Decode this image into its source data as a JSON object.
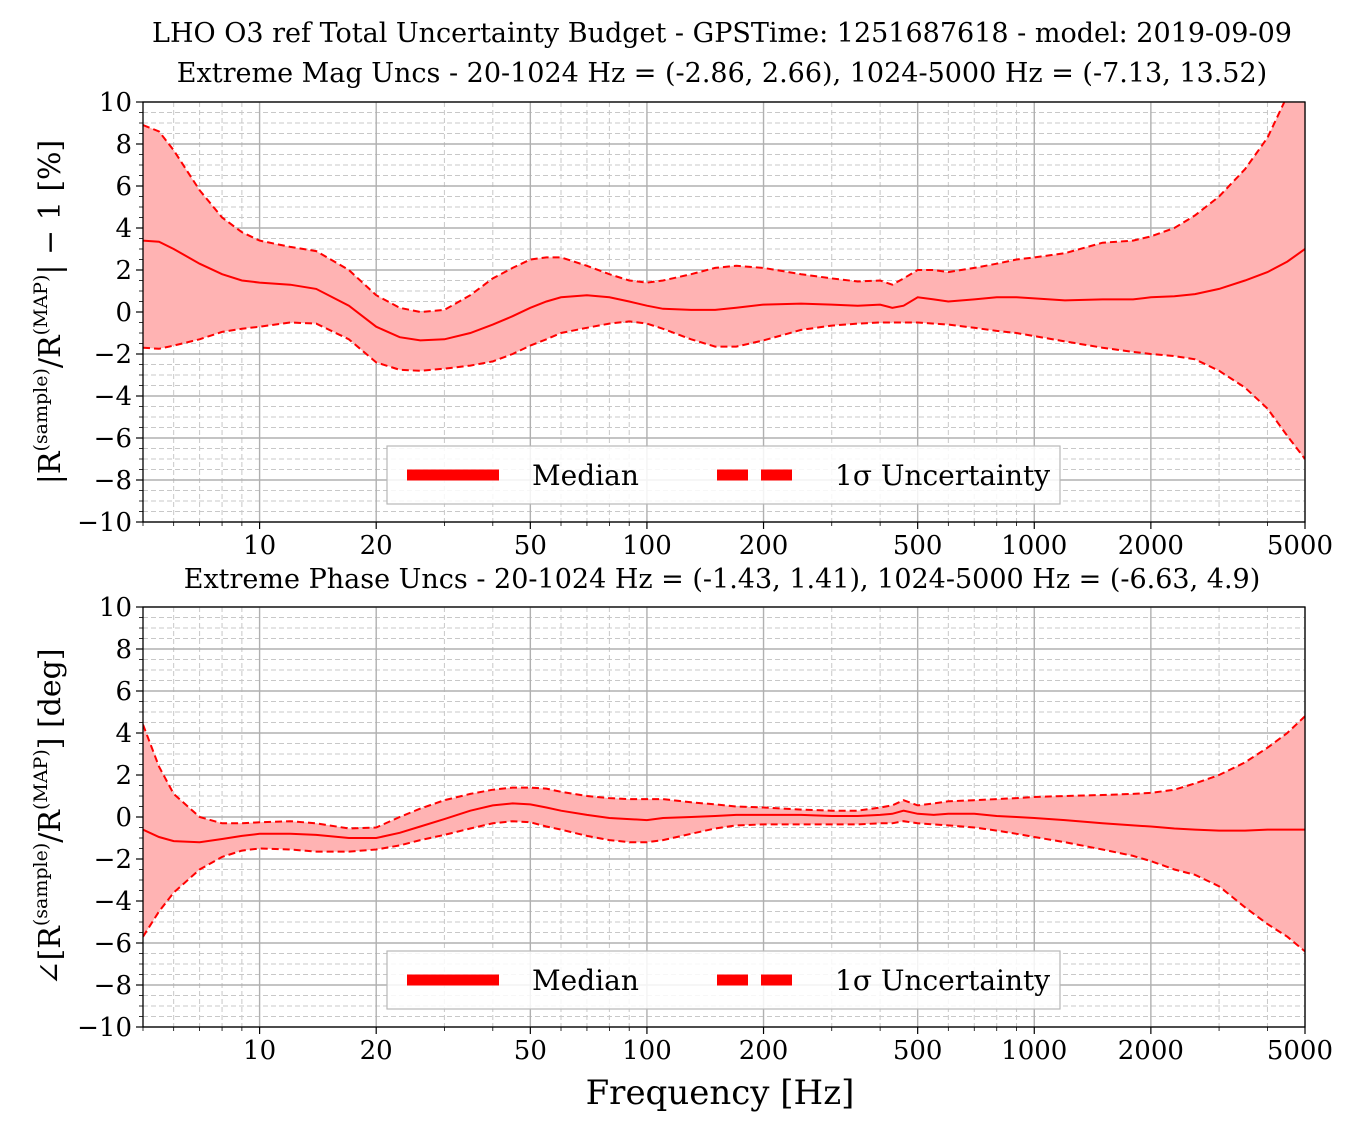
{
  "figure": {
    "suptitle_line1": "LHO O3 ref Total Uncertainty Budget - GPSTime: 1251687618 - model: 2019-09-09",
    "colors": {
      "median": "#ff0000",
      "band": "#ffb3b3",
      "grid": "#b0b0b0",
      "minor_grid": "#c8c8c8"
    }
  },
  "chart_data": [
    {
      "type": "area",
      "title": "Extreme Mag Uncs - 20-1024 Hz = (-2.86, 2.66), 1024-5000 Hz = (-7.13, 13.52)",
      "xlabel": "",
      "ylabel": "|R(sample)/R(MAP)| − 1 [%]",
      "ylabel_parts": {
        "pre": "|R",
        "sup1": "(sample)",
        "mid": "/R",
        "sup2": "(MAP)",
        "post": "| − 1 [%]"
      },
      "xscale": "log",
      "xlim": [
        5,
        5000
      ],
      "ylim": [
        -10,
        10
      ],
      "xticks": [
        10,
        20,
        50,
        100,
        200,
        500,
        1000,
        2000,
        5000
      ],
      "xtick_labels": [
        "10",
        "20",
        "50",
        "100",
        "200",
        "500",
        "1000",
        "2000",
        "5000"
      ],
      "yticks": [
        -10,
        -8,
        -6,
        -4,
        -2,
        0,
        2,
        4,
        6,
        8,
        10
      ],
      "ytick_labels": [
        "−10",
        "−8",
        "−6",
        "−4",
        "−2",
        "0",
        "2",
        "4",
        "6",
        "8",
        "10"
      ],
      "grid": true,
      "legend": {
        "placement": "bottom-center",
        "entries": [
          "Median",
          "1σ Uncertainty"
        ]
      },
      "x": [
        5,
        5.5,
        6,
        7,
        8,
        9,
        10,
        12,
        14,
        17,
        20,
        23,
        26,
        30,
        35,
        40,
        45,
        50,
        55,
        60,
        70,
        80,
        90,
        100,
        110,
        130,
        150,
        170,
        200,
        250,
        300,
        350,
        400,
        430,
        460,
        500,
        550,
        600,
        700,
        800,
        900,
        1000,
        1200,
        1500,
        1800,
        2000,
        2300,
        2600,
        3000,
        3500,
        4000,
        4500,
        5000
      ],
      "median": [
        3.4,
        3.35,
        3.0,
        2.3,
        1.8,
        1.5,
        1.4,
        1.3,
        1.1,
        0.3,
        -0.7,
        -1.2,
        -1.35,
        -1.3,
        -1.0,
        -0.6,
        -0.2,
        0.2,
        0.5,
        0.7,
        0.8,
        0.7,
        0.5,
        0.3,
        0.15,
        0.1,
        0.1,
        0.2,
        0.35,
        0.4,
        0.35,
        0.3,
        0.35,
        0.2,
        0.3,
        0.7,
        0.6,
        0.5,
        0.6,
        0.7,
        0.7,
        0.65,
        0.55,
        0.6,
        0.6,
        0.7,
        0.75,
        0.85,
        1.1,
        1.5,
        1.9,
        2.4,
        3.0
      ],
      "upper": [
        8.9,
        8.6,
        7.7,
        5.8,
        4.5,
        3.8,
        3.4,
        3.1,
        2.9,
        2.0,
        0.8,
        0.2,
        0.0,
        0.1,
        0.8,
        1.6,
        2.1,
        2.5,
        2.6,
        2.6,
        2.2,
        1.8,
        1.5,
        1.4,
        1.5,
        1.8,
        2.1,
        2.2,
        2.1,
        1.8,
        1.6,
        1.45,
        1.5,
        1.3,
        1.6,
        2.0,
        2.0,
        1.9,
        2.1,
        2.3,
        2.5,
        2.6,
        2.8,
        3.3,
        3.4,
        3.6,
        4.0,
        4.6,
        5.5,
        6.8,
        8.3,
        10.3,
        12.5
      ],
      "lower": [
        -1.7,
        -1.75,
        -1.6,
        -1.3,
        -0.95,
        -0.8,
        -0.7,
        -0.5,
        -0.55,
        -1.3,
        -2.4,
        -2.75,
        -2.8,
        -2.7,
        -2.55,
        -2.35,
        -2.0,
        -1.6,
        -1.3,
        -1.0,
        -0.75,
        -0.55,
        -0.45,
        -0.55,
        -0.8,
        -1.3,
        -1.65,
        -1.65,
        -1.35,
        -0.85,
        -0.65,
        -0.55,
        -0.5,
        -0.5,
        -0.5,
        -0.5,
        -0.55,
        -0.6,
        -0.75,
        -0.9,
        -1.0,
        -1.15,
        -1.4,
        -1.7,
        -1.9,
        -2.0,
        -2.1,
        -2.25,
        -2.8,
        -3.6,
        -4.6,
        -5.9,
        -7.0
      ]
    },
    {
      "type": "area",
      "title": "Extreme Phase Uncs - 20-1024 Hz = (-1.43, 1.41), 1024-5000 Hz = (-6.63, 4.9)",
      "xlabel": "Frequency [Hz]",
      "ylabel": "∠[R(sample)/R(MAP)] [deg]",
      "ylabel_parts": {
        "pre": "∠[R",
        "sup1": "(sample)",
        "mid": "/R",
        "sup2": "(MAP)",
        "post": "] [deg]"
      },
      "xscale": "log",
      "xlim": [
        5,
        5000
      ],
      "ylim": [
        -10,
        10
      ],
      "xticks": [
        10,
        20,
        50,
        100,
        200,
        500,
        1000,
        2000,
        5000
      ],
      "xtick_labels": [
        "10",
        "20",
        "50",
        "100",
        "200",
        "500",
        "1000",
        "2000",
        "5000"
      ],
      "yticks": [
        -10,
        -8,
        -6,
        -4,
        -2,
        0,
        2,
        4,
        6,
        8,
        10
      ],
      "ytick_labels": [
        "−10",
        "−8",
        "−6",
        "−4",
        "−2",
        "0",
        "2",
        "4",
        "6",
        "8",
        "10"
      ],
      "grid": true,
      "legend": {
        "placement": "bottom-center",
        "entries": [
          "Median",
          "1σ Uncertainty"
        ]
      },
      "x": [
        5,
        5.5,
        6,
        7,
        8,
        9,
        10,
        12,
        14,
        17,
        20,
        23,
        26,
        30,
        35,
        40,
        45,
        50,
        55,
        60,
        70,
        80,
        90,
        100,
        110,
        130,
        150,
        170,
        200,
        250,
        300,
        350,
        400,
        430,
        460,
        500,
        550,
        600,
        700,
        800,
        900,
        1000,
        1200,
        1500,
        1800,
        2000,
        2300,
        2600,
        3000,
        3500,
        4000,
        4500,
        5000
      ],
      "median": [
        -0.6,
        -0.95,
        -1.15,
        -1.2,
        -1.05,
        -0.9,
        -0.8,
        -0.8,
        -0.85,
        -1.0,
        -1.0,
        -0.75,
        -0.45,
        -0.1,
        0.3,
        0.55,
        0.65,
        0.6,
        0.45,
        0.3,
        0.1,
        -0.05,
        -0.1,
        -0.15,
        -0.05,
        0.0,
        0.05,
        0.1,
        0.1,
        0.1,
        0.05,
        0.05,
        0.1,
        0.15,
        0.3,
        0.15,
        0.1,
        0.15,
        0.15,
        0.05,
        0.0,
        -0.05,
        -0.15,
        -0.3,
        -0.4,
        -0.45,
        -0.55,
        -0.6,
        -0.65,
        -0.65,
        -0.6,
        -0.6,
        -0.6
      ],
      "upper": [
        4.4,
        2.4,
        1.1,
        0.0,
        -0.3,
        -0.3,
        -0.25,
        -0.2,
        -0.3,
        -0.55,
        -0.5,
        0.0,
        0.4,
        0.8,
        1.1,
        1.3,
        1.4,
        1.4,
        1.35,
        1.2,
        1.0,
        0.9,
        0.85,
        0.85,
        0.85,
        0.7,
        0.6,
        0.5,
        0.45,
        0.35,
        0.3,
        0.3,
        0.45,
        0.55,
        0.8,
        0.55,
        0.65,
        0.75,
        0.8,
        0.85,
        0.9,
        0.95,
        1.0,
        1.05,
        1.1,
        1.15,
        1.3,
        1.6,
        2.0,
        2.6,
        3.3,
        4.0,
        4.8
      ],
      "lower": [
        -5.7,
        -4.5,
        -3.6,
        -2.5,
        -1.9,
        -1.6,
        -1.5,
        -1.55,
        -1.65,
        -1.65,
        -1.55,
        -1.35,
        -1.1,
        -0.85,
        -0.55,
        -0.3,
        -0.2,
        -0.25,
        -0.45,
        -0.6,
        -0.9,
        -1.1,
        -1.2,
        -1.2,
        -1.1,
        -0.8,
        -0.55,
        -0.4,
        -0.35,
        -0.35,
        -0.35,
        -0.35,
        -0.3,
        -0.3,
        -0.2,
        -0.3,
        -0.35,
        -0.4,
        -0.5,
        -0.65,
        -0.8,
        -0.95,
        -1.2,
        -1.55,
        -1.85,
        -2.1,
        -2.5,
        -2.75,
        -3.3,
        -4.3,
        -5.1,
        -5.7,
        -6.4
      ]
    }
  ]
}
